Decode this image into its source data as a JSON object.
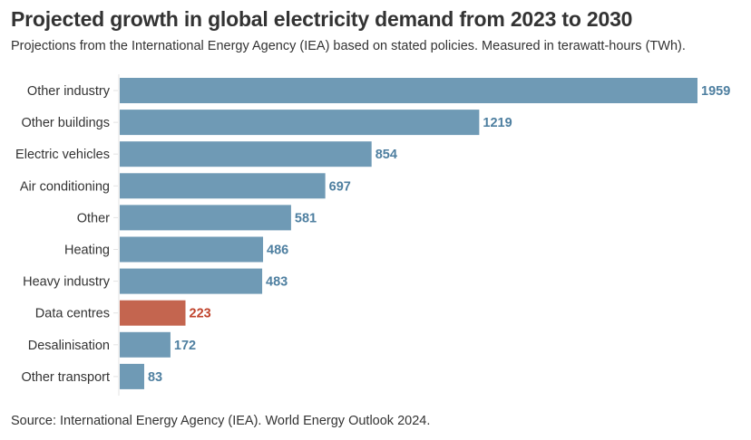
{
  "chart_data": {
    "type": "bar",
    "orientation": "horizontal",
    "title": "Projected growth in global electricity demand from 2023 to 2030",
    "subtitle": "Projections from the International Energy Agency (IEA) based on stated policies. Measured in terawatt-hours (TWh).",
    "source": "Source: International Energy Agency (IEA). World Energy Outlook 2024.",
    "categories": [
      "Other industry",
      "Other buildings",
      "Electric vehicles",
      "Air conditioning",
      "Other",
      "Heating",
      "Heavy industry",
      "Data centres",
      "Desalinisation",
      "Other transport"
    ],
    "values": [
      1959,
      1219,
      854,
      697,
      581,
      486,
      483,
      223,
      172,
      83
    ],
    "highlight": "Data centres",
    "xlim": [
      0,
      1959
    ],
    "grid": false,
    "colors": {
      "bar": "#6f9ab5",
      "bar_highlight": "#c4654f",
      "label": "#4e7fa0",
      "label_highlight": "#c0432c"
    }
  }
}
